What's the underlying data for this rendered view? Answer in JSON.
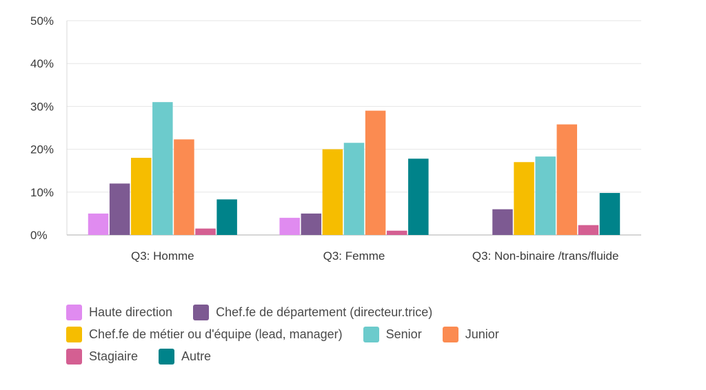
{
  "chart_data": {
    "type": "bar",
    "categories": [
      "Q3: Homme",
      "Q3: Femme",
      "Q3: Non-binaire /trans/fluide"
    ],
    "series": [
      {
        "name": "Haute direction",
        "color": "#e08bf0",
        "values": [
          5,
          4,
          0
        ]
      },
      {
        "name": "Chef.fe de département (directeur.trice)",
        "color": "#7d5a92",
        "values": [
          12,
          5,
          6
        ]
      },
      {
        "name": "Chef.fe de métier ou d'équipe (lead, manager)",
        "color": "#f6bd00",
        "values": [
          18,
          20,
          17
        ]
      },
      {
        "name": "Senior",
        "color": "#6ccbcc",
        "values": [
          31,
          21.5,
          18.3
        ]
      },
      {
        "name": "Junior",
        "color": "#fb8b51",
        "values": [
          22.3,
          29,
          25.8
        ]
      },
      {
        "name": "Stagiaire",
        "color": "#d45f92",
        "values": [
          1.5,
          1,
          2.3
        ]
      },
      {
        "name": "Autre",
        "color": "#00838a",
        "values": [
          8.3,
          17.8,
          9.8
        ]
      }
    ],
    "yticks": [
      "0%",
      "10%",
      "20%",
      "30%",
      "40%",
      "50%"
    ],
    "ylim": [
      0,
      50
    ],
    "grid": true,
    "legend_position": "bottom-left"
  },
  "legend_rows": [
    [
      0,
      1
    ],
    [
      2,
      3,
      4
    ],
    [
      5,
      6
    ]
  ]
}
